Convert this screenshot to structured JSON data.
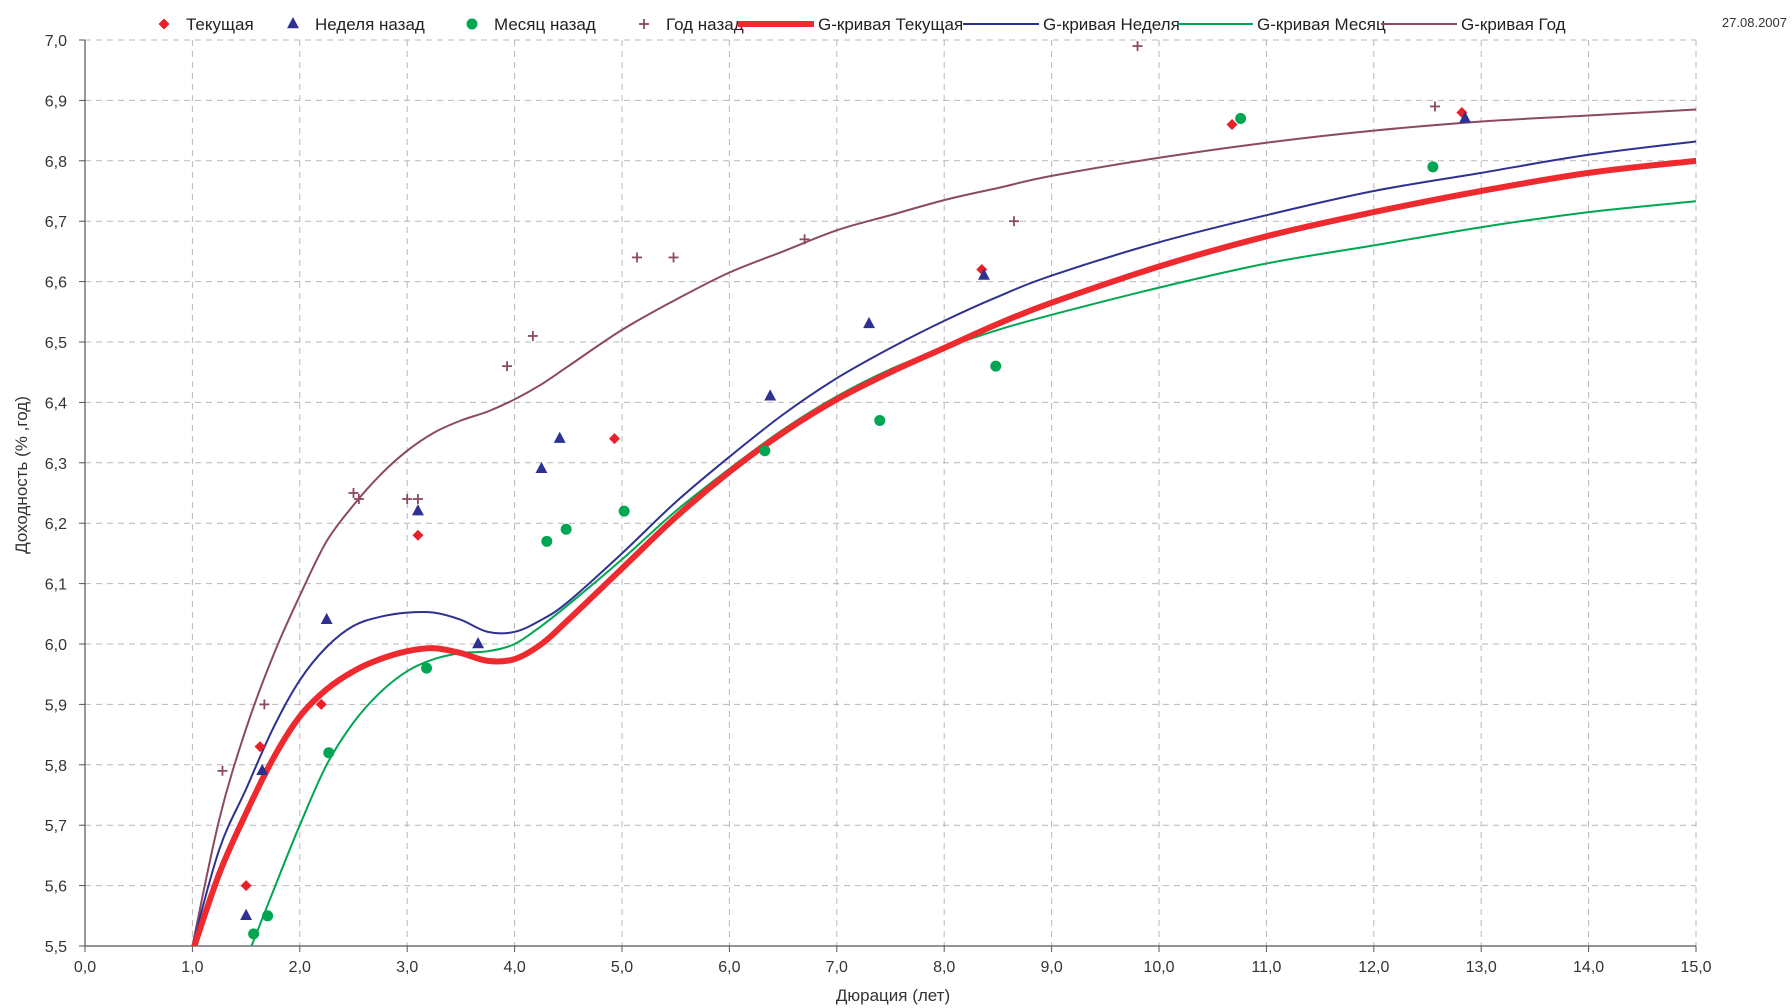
{
  "date_label": "27.08.2007",
  "chart_data": {
    "type": "scatter",
    "xlabel": "Дюрация (лет)",
    "ylabel": "Доходность (% ,год)",
    "xlim": [
      0,
      15
    ],
    "ylim": [
      5.5,
      7.0
    ],
    "x_ticks": [
      "0,0",
      "1,0",
      "2,0",
      "3,0",
      "4,0",
      "5,0",
      "6,0",
      "7,0",
      "8,0",
      "9,0",
      "10,0",
      "11,0",
      "12,0",
      "13,0",
      "14,0",
      "15,0"
    ],
    "y_ticks": [
      "5,5",
      "5,6",
      "5,7",
      "5,8",
      "5,9",
      "6,0",
      "6,1",
      "6,2",
      "6,3",
      "6,4",
      "6,5",
      "6,6",
      "6,7",
      "6,8",
      "6,9",
      "7,0"
    ],
    "grid": true,
    "legend_position": "top",
    "scatter_series": [
      {
        "name": "Текущая",
        "marker": "diamond",
        "color": "#e8202a",
        "points": [
          [
            1.5,
            5.6
          ],
          [
            1.63,
            5.83
          ],
          [
            2.2,
            5.9
          ],
          [
            3.1,
            6.18
          ],
          [
            4.93,
            6.34
          ],
          [
            8.35,
            6.62
          ],
          [
            10.68,
            6.86
          ],
          [
            12.82,
            6.88
          ]
        ]
      },
      {
        "name": "Неделя назад",
        "marker": "triangle",
        "color": "#2e3192",
        "points": [
          [
            1.5,
            5.55
          ],
          [
            1.65,
            5.79
          ],
          [
            2.25,
            6.04
          ],
          [
            3.1,
            6.22
          ],
          [
            3.66,
            6.0
          ],
          [
            4.25,
            6.29
          ],
          [
            4.42,
            6.34
          ],
          [
            6.38,
            6.41
          ],
          [
            7.3,
            6.53
          ],
          [
            8.37,
            6.61
          ],
          [
            12.85,
            6.87
          ]
        ]
      },
      {
        "name": "Месяц назад",
        "marker": "circle",
        "color": "#00a651",
        "points": [
          [
            1.57,
            5.52
          ],
          [
            1.7,
            5.55
          ],
          [
            2.27,
            5.82
          ],
          [
            3.18,
            5.96
          ],
          [
            4.3,
            6.17
          ],
          [
            4.48,
            6.19
          ],
          [
            5.02,
            6.22
          ],
          [
            6.33,
            6.32
          ],
          [
            7.4,
            6.37
          ],
          [
            8.48,
            6.46
          ],
          [
            10.76,
            6.87
          ],
          [
            12.55,
            6.79
          ]
        ]
      },
      {
        "name": "Год назад",
        "marker": "plus",
        "color": "#8b4a62",
        "points": [
          [
            1.28,
            5.79
          ],
          [
            1.67,
            5.9
          ],
          [
            2.5,
            6.25
          ],
          [
            2.55,
            6.24
          ],
          [
            3.0,
            6.24
          ],
          [
            3.1,
            6.24
          ],
          [
            3.93,
            6.46
          ],
          [
            4.17,
            6.51
          ],
          [
            5.14,
            6.64
          ],
          [
            5.48,
            6.64
          ],
          [
            6.7,
            6.67
          ],
          [
            8.65,
            6.7
          ],
          [
            9.8,
            6.99
          ],
          [
            12.57,
            6.89
          ]
        ]
      }
    ],
    "curve_series": [
      {
        "name": "G-кривая Текущая",
        "color": "#ee2a2f",
        "width": 6,
        "points": [
          [
            1.0,
            5.49
          ],
          [
            1.25,
            5.62
          ],
          [
            1.5,
            5.72
          ],
          [
            1.75,
            5.81
          ],
          [
            2.0,
            5.88
          ],
          [
            2.25,
            5.925
          ],
          [
            2.5,
            5.955
          ],
          [
            2.75,
            5.975
          ],
          [
            3.0,
            5.988
          ],
          [
            3.25,
            5.993
          ],
          [
            3.5,
            5.985
          ],
          [
            3.75,
            5.972
          ],
          [
            4.0,
            5.975
          ],
          [
            4.25,
            6.0
          ],
          [
            4.5,
            6.04
          ],
          [
            5.0,
            6.125
          ],
          [
            5.5,
            6.21
          ],
          [
            6.0,
            6.285
          ],
          [
            6.5,
            6.35
          ],
          [
            7.0,
            6.405
          ],
          [
            7.5,
            6.45
          ],
          [
            8.0,
            6.49
          ],
          [
            8.5,
            6.53
          ],
          [
            9.0,
            6.565
          ],
          [
            10.0,
            6.625
          ],
          [
            11.0,
            6.675
          ],
          [
            12.0,
            6.715
          ],
          [
            13.0,
            6.75
          ],
          [
            14.0,
            6.78
          ],
          [
            15.0,
            6.8
          ]
        ]
      },
      {
        "name": "G-кривая Неделя",
        "color": "#2e3192",
        "width": 2,
        "points": [
          [
            1.0,
            5.5
          ],
          [
            1.25,
            5.66
          ],
          [
            1.5,
            5.76
          ],
          [
            1.75,
            5.86
          ],
          [
            2.0,
            5.94
          ],
          [
            2.25,
            5.995
          ],
          [
            2.5,
            6.03
          ],
          [
            2.75,
            6.045
          ],
          [
            3.0,
            6.052
          ],
          [
            3.25,
            6.052
          ],
          [
            3.5,
            6.04
          ],
          [
            3.75,
            6.02
          ],
          [
            4.0,
            6.02
          ],
          [
            4.25,
            6.04
          ],
          [
            4.5,
            6.07
          ],
          [
            5.0,
            6.15
          ],
          [
            5.5,
            6.235
          ],
          [
            6.0,
            6.31
          ],
          [
            6.5,
            6.38
          ],
          [
            7.0,
            6.44
          ],
          [
            7.5,
            6.49
          ],
          [
            8.0,
            6.535
          ],
          [
            8.5,
            6.575
          ],
          [
            9.0,
            6.61
          ],
          [
            10.0,
            6.665
          ],
          [
            11.0,
            6.71
          ],
          [
            12.0,
            6.75
          ],
          [
            13.0,
            6.78
          ],
          [
            14.0,
            6.81
          ],
          [
            15.0,
            6.832
          ]
        ]
      },
      {
        "name": "G-кривая Месяц",
        "color": "#00a651",
        "width": 2,
        "points": [
          [
            1.55,
            5.5
          ],
          [
            1.75,
            5.59
          ],
          [
            2.0,
            5.7
          ],
          [
            2.25,
            5.8
          ],
          [
            2.5,
            5.87
          ],
          [
            2.75,
            5.92
          ],
          [
            3.0,
            5.955
          ],
          [
            3.25,
            5.975
          ],
          [
            3.5,
            5.985
          ],
          [
            3.75,
            5.988
          ],
          [
            4.0,
            6.0
          ],
          [
            4.25,
            6.03
          ],
          [
            4.5,
            6.065
          ],
          [
            5.0,
            6.14
          ],
          [
            5.5,
            6.22
          ],
          [
            6.0,
            6.29
          ],
          [
            6.5,
            6.355
          ],
          [
            7.0,
            6.41
          ],
          [
            7.5,
            6.455
          ],
          [
            8.0,
            6.49
          ],
          [
            8.5,
            6.52
          ],
          [
            9.0,
            6.545
          ],
          [
            10.0,
            6.59
          ],
          [
            11.0,
            6.63
          ],
          [
            12.0,
            6.66
          ],
          [
            13.0,
            6.69
          ],
          [
            14.0,
            6.715
          ],
          [
            15.0,
            6.733
          ]
        ]
      },
      {
        "name": "G-кривая Год",
        "color": "#8b4a62",
        "width": 2,
        "points": [
          [
            1.0,
            5.5
          ],
          [
            1.25,
            5.71
          ],
          [
            1.5,
            5.86
          ],
          [
            1.75,
            5.98
          ],
          [
            2.0,
            6.08
          ],
          [
            2.25,
            6.17
          ],
          [
            2.5,
            6.23
          ],
          [
            2.75,
            6.28
          ],
          [
            3.0,
            6.32
          ],
          [
            3.25,
            6.35
          ],
          [
            3.5,
            6.37
          ],
          [
            3.75,
            6.385
          ],
          [
            4.0,
            6.405
          ],
          [
            4.25,
            6.43
          ],
          [
            4.5,
            6.46
          ],
          [
            5.0,
            6.52
          ],
          [
            5.5,
            6.57
          ],
          [
            6.0,
            6.615
          ],
          [
            6.5,
            6.65
          ],
          [
            7.0,
            6.685
          ],
          [
            7.5,
            6.71
          ],
          [
            8.0,
            6.735
          ],
          [
            8.5,
            6.755
          ],
          [
            9.0,
            6.775
          ],
          [
            10.0,
            6.805
          ],
          [
            11.0,
            6.83
          ],
          [
            12.0,
            6.85
          ],
          [
            13.0,
            6.865
          ],
          [
            14.0,
            6.875
          ],
          [
            15.0,
            6.885
          ]
        ]
      }
    ]
  }
}
